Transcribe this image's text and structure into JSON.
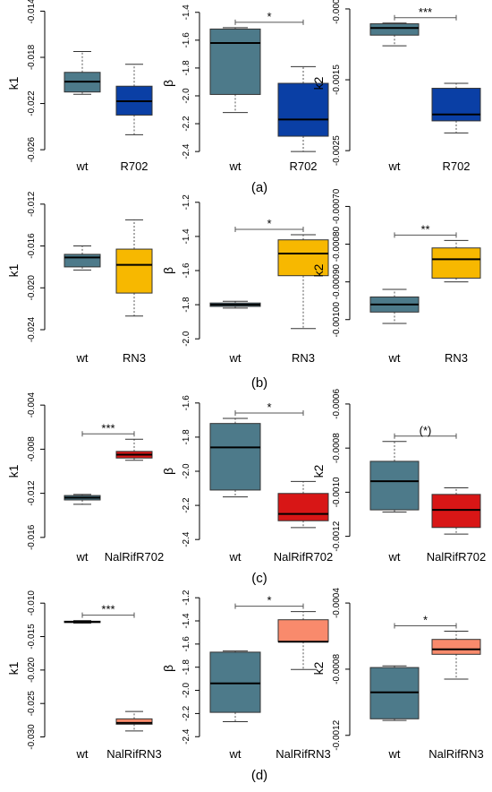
{
  "chart_data": [
    {
      "type": "boxplot",
      "row_label": "(a)",
      "ylabel": "k1",
      "ylim": [
        -0.027,
        -0.0135
      ],
      "yticks": [
        "-0.014",
        "-0.018",
        "-0.022",
        "-0.026"
      ],
      "yticks_values": [
        -0.014,
        -0.018,
        -0.022,
        -0.026
      ],
      "categories": [
        "wt",
        "R702"
      ],
      "boxes": [
        {
          "whislo": -0.0212,
          "q1": -0.021,
          "med": -0.0201,
          "q3": -0.0193,
          "whishi": -0.0175,
          "color": "#4d7a8a"
        },
        {
          "whislo": -0.0247,
          "q1": -0.023,
          "med": -0.0218,
          "q3": -0.0205,
          "whishi": -0.0186,
          "color": "#0a3fa5"
        }
      ],
      "significance": ""
    },
    {
      "type": "boxplot",
      "row_label": "(a)",
      "ylabel": "β",
      "ylim": [
        -2.47,
        -1.35
      ],
      "yticks": [
        "-1.4",
        "-1.6",
        "-1.8",
        "-2.0",
        "-2.2",
        "-2.4"
      ],
      "yticks_values": [
        -1.4,
        -1.6,
        -1.8,
        -2.0,
        -2.2,
        -2.4
      ],
      "categories": [
        "wt",
        "R702"
      ],
      "boxes": [
        {
          "whislo": -2.12,
          "q1": -1.99,
          "med": -1.62,
          "q3": -1.52,
          "whishi": -1.51,
          "color": "#4d7a8a"
        },
        {
          "whislo": -2.4,
          "q1": -2.29,
          "med": -2.17,
          "q3": -1.91,
          "whishi": -1.79,
          "color": "#0a3fa5"
        }
      ],
      "significance": "*"
    },
    {
      "type": "boxplot",
      "row_label": "(a)",
      "ylabel": "k2",
      "ylim": [
        -0.00265,
        -0.00045
      ],
      "yticks": [
        "-0.0005",
        "-0.0015",
        "-0.0025"
      ],
      "yticks_values": [
        -0.0005,
        -0.0015,
        -0.0025
      ],
      "categories": [
        "wt",
        "R702"
      ],
      "boxes": [
        {
          "whislo": -0.00102,
          "q1": -0.00087,
          "med": -0.00077,
          "q3": -0.00071,
          "whishi": -0.0007,
          "color": "#4d7a8a"
        },
        {
          "whislo": -0.00225,
          "q1": -0.00208,
          "med": -0.00199,
          "q3": -0.00162,
          "whishi": -0.00155,
          "color": "#0a3fa5"
        }
      ],
      "significance": "***"
    },
    {
      "type": "boxplot",
      "row_label": "(b)",
      "ylabel": "k1",
      "ylim": [
        -0.0252,
        -0.0115
      ],
      "yticks": [
        "-0.012",
        "-0.016",
        "-0.020",
        "-0.024"
      ],
      "yticks_values": [
        -0.012,
        -0.016,
        -0.02,
        -0.024
      ],
      "categories": [
        "wt",
        "RN3"
      ],
      "boxes": [
        {
          "whislo": -0.0183,
          "q1": -0.018,
          "med": -0.0171,
          "q3": -0.0168,
          "whishi": -0.016,
          "color": "#4d7a8a"
        },
        {
          "whislo": -0.0227,
          "q1": -0.0205,
          "med": -0.0178,
          "q3": -0.0163,
          "whishi": -0.0135,
          "color": "#f7b800"
        }
      ],
      "significance": ""
    },
    {
      "type": "boxplot",
      "row_label": "(b)",
      "ylabel": "β",
      "ylim": [
        -2.02,
        -1.18
      ],
      "yticks": [
        "-1.2",
        "-1.4",
        "-1.6",
        "-1.8",
        "-2.0"
      ],
      "yticks_values": [
        -1.2,
        -1.4,
        -1.6,
        -1.8,
        -2.0
      ],
      "categories": [
        "wt",
        "RN3"
      ],
      "boxes": [
        {
          "whislo": -1.82,
          "q1": -1.81,
          "med": -1.8,
          "q3": -1.79,
          "whishi": -1.78,
          "color": "#4d7a8a"
        },
        {
          "whislo": -1.94,
          "q1": -1.63,
          "med": -1.5,
          "q3": -1.42,
          "whishi": -1.39,
          "color": "#f7b800"
        }
      ],
      "significance": "*"
    },
    {
      "type": "boxplot",
      "row_label": "(b)",
      "ylabel": "k2",
      "ylim": [
        -0.00106,
        -0.00068
      ],
      "yticks": [
        "-0.00070",
        "-0.00080",
        "-0.00090",
        "-0.00100"
      ],
      "yticks_values": [
        -0.0007,
        -0.0008,
        -0.0009,
        -0.001
      ],
      "categories": [
        "wt",
        "RN3"
      ],
      "boxes": [
        {
          "whislo": -0.00101,
          "q1": -0.00098,
          "med": -0.00096,
          "q3": -0.00094,
          "whishi": -0.00092,
          "color": "#4d7a8a"
        },
        {
          "whislo": -0.0009,
          "q1": -0.00089,
          "med": -0.00084,
          "q3": -0.00081,
          "whishi": -0.00079,
          "color": "#f7b800"
        }
      ],
      "significance": "**"
    },
    {
      "type": "boxplot",
      "row_label": "(c)",
      "ylabel": "k1",
      "ylim": [
        -0.0165,
        -0.0035
      ],
      "yticks": [
        "-0.004",
        "-0.008",
        "-0.012",
        "-0.016"
      ],
      "yticks_values": [
        -0.004,
        -0.008,
        -0.012,
        -0.016
      ],
      "categories": [
        "wt",
        "NalRifR702"
      ],
      "boxes": [
        {
          "whislo": -0.013,
          "q1": -0.0126,
          "med": -0.0124,
          "q3": -0.0122,
          "whishi": -0.0121,
          "color": "#4d7a8a"
        },
        {
          "whislo": -0.009,
          "q1": -0.0088,
          "med": -0.0085,
          "q3": -0.0082,
          "whishi": -0.0071,
          "color": "#d81616"
        }
      ],
      "significance": "***"
    },
    {
      "type": "boxplot",
      "row_label": "(c)",
      "ylabel": "β",
      "ylim": [
        -2.42,
        -1.58
      ],
      "yticks": [
        "-1.6",
        "-1.8",
        "-2.0",
        "-2.2",
        "-2.4"
      ],
      "yticks_values": [
        -1.6,
        -1.8,
        -2.0,
        -2.2,
        -2.4
      ],
      "categories": [
        "wt",
        "NalRifR702"
      ],
      "boxes": [
        {
          "whislo": -2.15,
          "q1": -2.11,
          "med": -1.86,
          "q3": -1.72,
          "whishi": -1.69,
          "color": "#4d7a8a"
        },
        {
          "whislo": -2.33,
          "q1": -2.29,
          "med": -2.25,
          "q3": -2.13,
          "whishi": -2.06,
          "color": "#d81616"
        }
      ],
      "significance": "*"
    },
    {
      "type": "boxplot",
      "row_label": "(c)",
      "ylabel": "k2",
      "ylim": [
        -0.00123,
        -0.00058
      ],
      "yticks": [
        "-0.0006",
        "-0.0008",
        "-0.0010",
        "-0.0012"
      ],
      "yticks_values": [
        -0.0006,
        -0.0008,
        -0.001,
        -0.0012
      ],
      "categories": [
        "wt",
        "NalRifR702"
      ],
      "boxes": [
        {
          "whislo": -0.00109,
          "q1": -0.00108,
          "med": -0.00095,
          "q3": -0.00086,
          "whishi": -0.00077,
          "color": "#4d7a8a"
        },
        {
          "whislo": -0.00119,
          "q1": -0.00116,
          "med": -0.00108,
          "q3": -0.00101,
          "whishi": -0.00098,
          "color": "#d81616"
        }
      ],
      "significance": "(*)"
    },
    {
      "type": "boxplot",
      "row_label": "(d)",
      "ylabel": "k1",
      "ylim": [
        -0.031,
        -0.0085
      ],
      "yticks": [
        "-0.010",
        "-0.015",
        "-0.020",
        "-0.025",
        "-0.030"
      ],
      "yticks_values": [
        -0.01,
        -0.015,
        -0.02,
        -0.025,
        -0.03
      ],
      "categories": [
        "wt",
        "NalRifRN3"
      ],
      "boxes": [
        {
          "whislo": -0.013,
          "q1": -0.0129,
          "med": -0.0128,
          "q3": -0.0127,
          "whishi": -0.0126,
          "color": "#4d7a8a"
        },
        {
          "whislo": -0.0291,
          "q1": -0.0281,
          "med": -0.0279,
          "q3": -0.0273,
          "whishi": -0.0262,
          "color": "#f98a6c"
        }
      ],
      "significance": "***"
    },
    {
      "type": "boxplot",
      "row_label": "(d)",
      "ylabel": "β",
      "ylim": [
        -2.46,
        -1.16
      ],
      "yticks": [
        "-1.2",
        "-1.4",
        "-1.6",
        "-1.8",
        "-2.0",
        "-2.2",
        "-2.4"
      ],
      "yticks_values": [
        -1.2,
        -1.4,
        -1.6,
        -1.8,
        -2.0,
        -2.2,
        -2.4
      ],
      "categories": [
        "wt",
        "NalRifRN3"
      ],
      "boxes": [
        {
          "whislo": -2.27,
          "q1": -2.19,
          "med": -1.94,
          "q3": -1.67,
          "whishi": -1.66,
          "color": "#4d7a8a"
        },
        {
          "whislo": -1.82,
          "q1": -1.58,
          "med": -1.58,
          "q3": -1.39,
          "whishi": -1.32,
          "color": "#f98a6c"
        }
      ],
      "significance": "*"
    },
    {
      "type": "boxplot",
      "row_label": "(d)",
      "ylabel": "k2",
      "ylim": [
        -0.00125,
        -0.00034
      ],
      "yticks": [
        "-0.0004",
        "-0.0008",
        "-0.0012"
      ],
      "yticks_values": [
        -0.0004,
        -0.0008,
        -0.0012
      ],
      "categories": [
        "wt",
        "NalRifRN3"
      ],
      "boxes": [
        {
          "whislo": -0.00111,
          "q1": -0.0011,
          "med": -0.00094,
          "q3": -0.00079,
          "whishi": -0.00078,
          "color": "#4d7a8a"
        },
        {
          "whislo": -0.00086,
          "q1": -0.00071,
          "med": -0.00068,
          "q3": -0.00062,
          "whishi": -0.00057,
          "color": "#f98a6c"
        }
      ],
      "significance": "*"
    }
  ],
  "row_labels": [
    "(a)",
    "(b)",
    "(c)",
    "(d)"
  ]
}
